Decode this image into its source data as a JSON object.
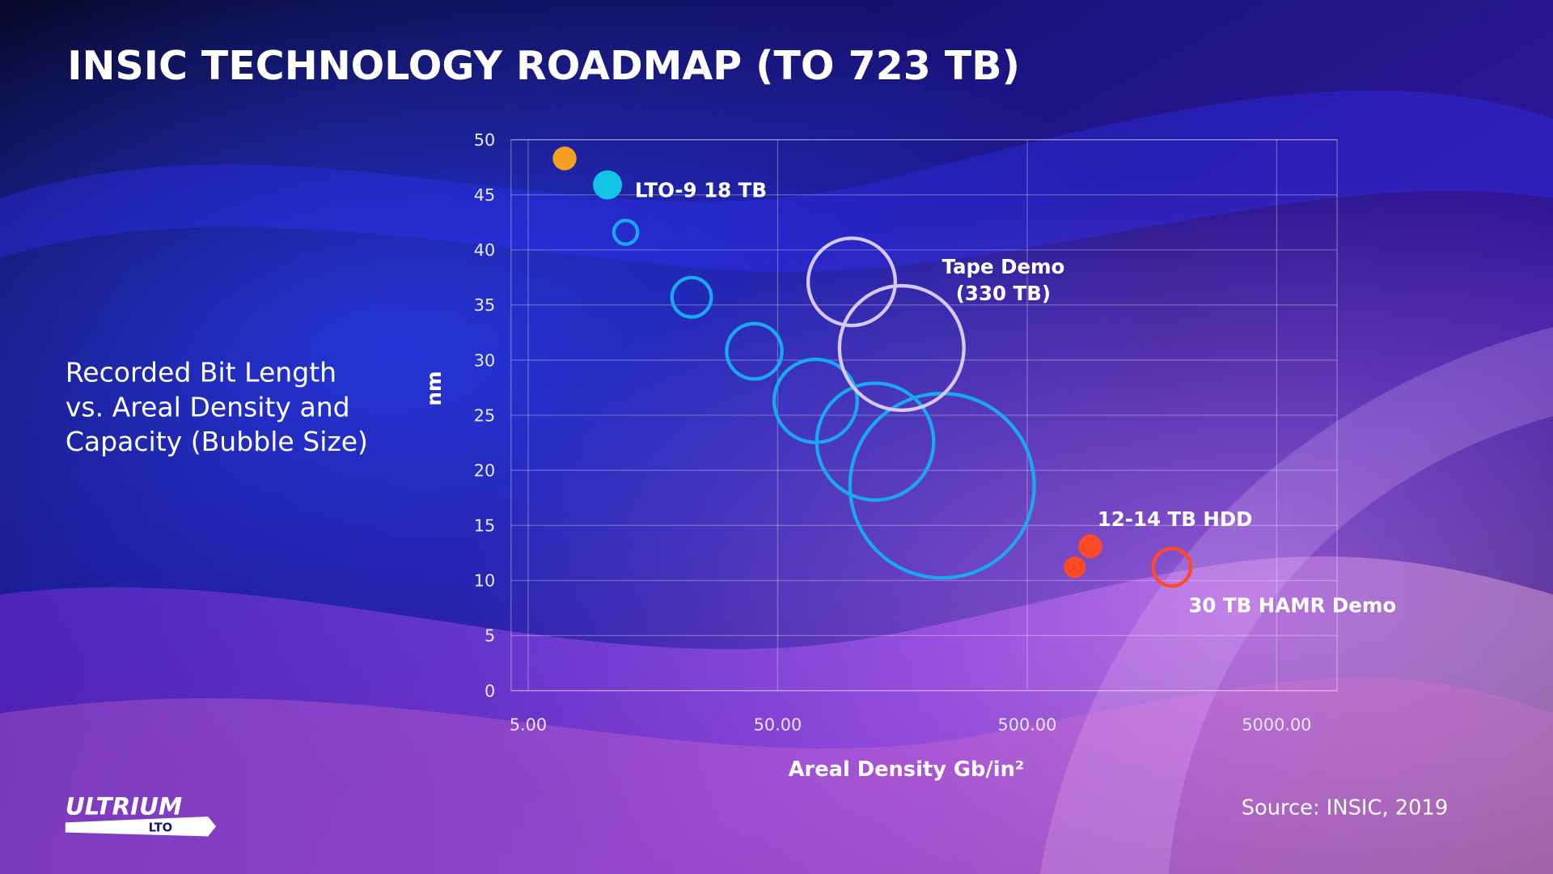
{
  "chart_data": {
    "type": "bubble",
    "title": "INSIC TECHNOLOGY ROADMAP (TO 723 TB)",
    "subtitle": [
      "Recorded Bit Length",
      "vs. Areal Density and",
      "Capacity (Bubble Size)"
    ],
    "x_label": "Areal Density Gb/in²",
    "y_label": "nm",
    "source": "Source: INSIC, 2019",
    "logo": {
      "text": "ULTRIUM",
      "sub": "LTO"
    },
    "x_scale": "log",
    "xlim": [
      4.27,
      8728
    ],
    "xticks": [
      {
        "value": 5,
        "label": "5.00"
      },
      {
        "value": 50,
        "label": "50.00"
      },
      {
        "value": 500,
        "label": "500.00"
      },
      {
        "value": 5000,
        "label": "5000.00"
      }
    ],
    "ylim": [
      0,
      50
    ],
    "yticks": [
      0,
      5,
      10,
      15,
      20,
      25,
      30,
      35,
      40,
      45,
      50
    ],
    "grid": true,
    "series": [
      {
        "color": "#f5a020",
        "filled": true,
        "x": [
          7.0
        ],
        "values": [
          48.3
        ],
        "sizes": [
          12
        ]
      },
      {
        "color": "#14c4e6",
        "filled": true,
        "x": [
          10.4
        ],
        "values": [
          45.9
        ],
        "sizes": [
          18
        ]
      },
      {
        "color": "#1aa8f0",
        "filled": false,
        "x": [
          12.3,
          22.6,
          40.3,
          71,
          123,
          228
        ],
        "values": [
          41.6,
          35.7,
          30.8,
          26.3,
          22.6,
          18.6
        ],
        "sizes": [
          12,
          33,
          65,
          147,
          291,
          723
        ]
      },
      {
        "color": "#d8c8f4",
        "filled": false,
        "x": [
          99,
          157
        ],
        "values": [
          37.1,
          31.1
        ],
        "sizes": [
          162,
          330
        ]
      },
      {
        "color": "#ff4a26",
        "filled": true,
        "x": [
          895,
          775
        ],
        "values": [
          13.1,
          11.2
        ],
        "sizes": [
          12,
          10
        ]
      },
      {
        "color": "#ff4a26",
        "filled": false,
        "x": [
          1900
        ],
        "values": [
          11.2
        ],
        "sizes": [
          30
        ]
      }
    ],
    "annotations": [
      "LTO-9 18 TB",
      "Tape Demo",
      "(330 TB)",
      "12-14 TB HDD",
      "30 TB HAMR Demo"
    ]
  }
}
